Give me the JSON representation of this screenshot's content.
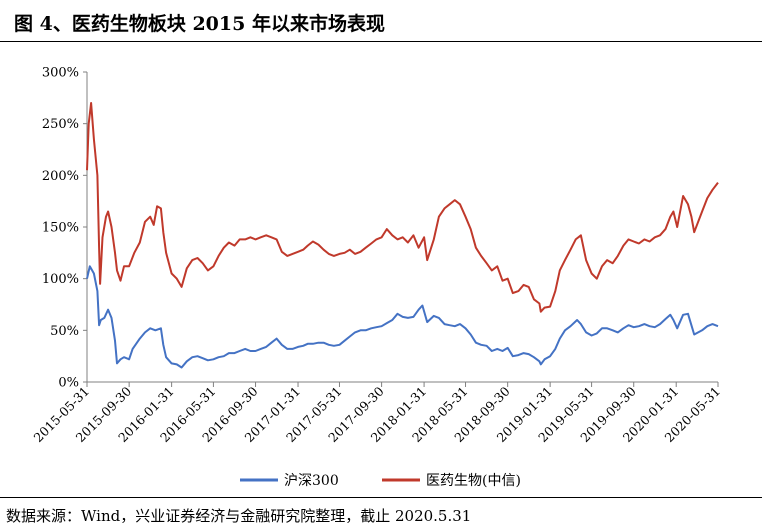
{
  "title": "图 4、医药生物板块 2015 年以来市场表现",
  "source": "数据来源：Wind，兴业证券经济与金融研究院整理，截止 2020.5.31",
  "chart_data": {
    "type": "line",
    "title": "",
    "xlabel": "",
    "ylabel": "",
    "ylim": [
      0,
      300
    ],
    "y_ticks": [
      "0%",
      "50%",
      "100%",
      "150%",
      "200%",
      "250%",
      "300%"
    ],
    "x_ticks": [
      "2015-05-31",
      "2015-09-30",
      "2016-01-31",
      "2016-05-31",
      "2016-09-30",
      "2017-01-31",
      "2017-05-31",
      "2017-09-30",
      "2018-01-31",
      "2018-05-31",
      "2018-09-30",
      "2019-01-31",
      "2019-05-31",
      "2019-09-30",
      "2020-01-31",
      "2020-05-31"
    ],
    "grid": false,
    "legend_position": "bottom",
    "colors": {
      "hs300": "#4472C4",
      "pharma": "#C0392B"
    },
    "series": [
      {
        "name": "沪深300",
        "points": [
          [
            "2015-05-31",
            100
          ],
          [
            "2015-06-08",
            112
          ],
          [
            "2015-06-20",
            105
          ],
          [
            "2015-06-30",
            88
          ],
          [
            "2015-07-05",
            55
          ],
          [
            "2015-07-10",
            60
          ],
          [
            "2015-07-20",
            62
          ],
          [
            "2015-07-31",
            70
          ],
          [
            "2015-08-10",
            62
          ],
          [
            "2015-08-20",
            40
          ],
          [
            "2015-08-26",
            18
          ],
          [
            "2015-09-05",
            22
          ],
          [
            "2015-09-15",
            24
          ],
          [
            "2015-09-30",
            22
          ],
          [
            "2015-10-10",
            32
          ],
          [
            "2015-10-31",
            42
          ],
          [
            "2015-11-15",
            48
          ],
          [
            "2015-11-30",
            52
          ],
          [
            "2015-12-15",
            50
          ],
          [
            "2015-12-31",
            52
          ],
          [
            "2016-01-07",
            36
          ],
          [
            "2016-01-15",
            24
          ],
          [
            "2016-01-31",
            18
          ],
          [
            "2016-02-15",
            17
          ],
          [
            "2016-02-29",
            14
          ],
          [
            "2016-03-15",
            20
          ],
          [
            "2016-03-31",
            24
          ],
          [
            "2016-04-15",
            25
          ],
          [
            "2016-04-30",
            23
          ],
          [
            "2016-05-15",
            21
          ],
          [
            "2016-05-31",
            22
          ],
          [
            "2016-06-15",
            24
          ],
          [
            "2016-06-30",
            25
          ],
          [
            "2016-07-15",
            28
          ],
          [
            "2016-07-31",
            28
          ],
          [
            "2016-08-15",
            30
          ],
          [
            "2016-08-31",
            32
          ],
          [
            "2016-09-15",
            30
          ],
          [
            "2016-09-30",
            30
          ],
          [
            "2016-10-15",
            32
          ],
          [
            "2016-10-31",
            34
          ],
          [
            "2016-11-15",
            38
          ],
          [
            "2016-11-30",
            42
          ],
          [
            "2016-12-15",
            36
          ],
          [
            "2016-12-31",
            32
          ],
          [
            "2017-01-15",
            32
          ],
          [
            "2017-01-31",
            34
          ],
          [
            "2017-02-15",
            35
          ],
          [
            "2017-02-28",
            37
          ],
          [
            "2017-03-15",
            37
          ],
          [
            "2017-03-31",
            38
          ],
          [
            "2017-04-15",
            38
          ],
          [
            "2017-04-30",
            36
          ],
          [
            "2017-05-15",
            35
          ],
          [
            "2017-05-31",
            36
          ],
          [
            "2017-06-15",
            40
          ],
          [
            "2017-06-30",
            44
          ],
          [
            "2017-07-15",
            48
          ],
          [
            "2017-07-31",
            50
          ],
          [
            "2017-08-15",
            50
          ],
          [
            "2017-08-31",
            52
          ],
          [
            "2017-09-15",
            53
          ],
          [
            "2017-09-30",
            54
          ],
          [
            "2017-10-15",
            57
          ],
          [
            "2017-10-31",
            60
          ],
          [
            "2017-11-15",
            66
          ],
          [
            "2017-11-30",
            63
          ],
          [
            "2017-12-15",
            62
          ],
          [
            "2017-12-31",
            63
          ],
          [
            "2018-01-15",
            70
          ],
          [
            "2018-01-26",
            74
          ],
          [
            "2018-02-09",
            58
          ],
          [
            "2018-02-28",
            64
          ],
          [
            "2018-03-15",
            62
          ],
          [
            "2018-03-31",
            56
          ],
          [
            "2018-04-15",
            55
          ],
          [
            "2018-04-30",
            54
          ],
          [
            "2018-05-15",
            56
          ],
          [
            "2018-05-31",
            52
          ],
          [
            "2018-06-15",
            46
          ],
          [
            "2018-06-30",
            38
          ],
          [
            "2018-07-15",
            36
          ],
          [
            "2018-07-31",
            35
          ],
          [
            "2018-08-15",
            30
          ],
          [
            "2018-08-31",
            32
          ],
          [
            "2018-09-15",
            30
          ],
          [
            "2018-09-30",
            33
          ],
          [
            "2018-10-15",
            25
          ],
          [
            "2018-10-31",
            26
          ],
          [
            "2018-11-15",
            28
          ],
          [
            "2018-11-30",
            27
          ],
          [
            "2018-12-15",
            24
          ],
          [
            "2018-12-31",
            20
          ],
          [
            "2019-01-04",
            17
          ],
          [
            "2019-01-15",
            22
          ],
          [
            "2019-01-31",
            25
          ],
          [
            "2019-02-15",
            32
          ],
          [
            "2019-02-28",
            42
          ],
          [
            "2019-03-15",
            50
          ],
          [
            "2019-03-31",
            54
          ],
          [
            "2019-04-19",
            60
          ],
          [
            "2019-04-30",
            56
          ],
          [
            "2019-05-15",
            48
          ],
          [
            "2019-05-31",
            45
          ],
          [
            "2019-06-15",
            47
          ],
          [
            "2019-06-30",
            52
          ],
          [
            "2019-07-15",
            52
          ],
          [
            "2019-07-31",
            50
          ],
          [
            "2019-08-15",
            48
          ],
          [
            "2019-08-31",
            52
          ],
          [
            "2019-09-15",
            55
          ],
          [
            "2019-09-30",
            53
          ],
          [
            "2019-10-15",
            54
          ],
          [
            "2019-10-31",
            56
          ],
          [
            "2019-11-15",
            54
          ],
          [
            "2019-11-30",
            53
          ],
          [
            "2019-12-15",
            56
          ],
          [
            "2019-12-31",
            61
          ],
          [
            "2020-01-14",
            65
          ],
          [
            "2020-01-23",
            60
          ],
          [
            "2020-02-03",
            52
          ],
          [
            "2020-02-20",
            65
          ],
          [
            "2020-03-05",
            66
          ],
          [
            "2020-03-15",
            55
          ],
          [
            "2020-03-23",
            46
          ],
          [
            "2020-04-15",
            50
          ],
          [
            "2020-04-30",
            54
          ],
          [
            "2020-05-15",
            56
          ],
          [
            "2020-05-31",
            54
          ]
        ]
      },
      {
        "name": "医药生物(中信)",
        "points": [
          [
            "2015-05-31",
            205
          ],
          [
            "2015-06-05",
            250
          ],
          [
            "2015-06-12",
            270
          ],
          [
            "2015-06-20",
            235
          ],
          [
            "2015-06-30",
            200
          ],
          [
            "2015-07-05",
            130
          ],
          [
            "2015-07-08",
            95
          ],
          [
            "2015-07-15",
            140
          ],
          [
            "2015-07-25",
            160
          ],
          [
            "2015-07-31",
            165
          ],
          [
            "2015-08-10",
            150
          ],
          [
            "2015-08-20",
            125
          ],
          [
            "2015-08-26",
            108
          ],
          [
            "2015-09-05",
            98
          ],
          [
            "2015-09-15",
            112
          ],
          [
            "2015-09-30",
            112
          ],
          [
            "2015-10-15",
            125
          ],
          [
            "2015-10-31",
            135
          ],
          [
            "2015-11-15",
            155
          ],
          [
            "2015-11-30",
            160
          ],
          [
            "2015-12-10",
            152
          ],
          [
            "2015-12-20",
            170
          ],
          [
            "2015-12-31",
            168
          ],
          [
            "2016-01-07",
            145
          ],
          [
            "2016-01-15",
            125
          ],
          [
            "2016-01-31",
            105
          ],
          [
            "2016-02-15",
            100
          ],
          [
            "2016-02-29",
            92
          ],
          [
            "2016-03-15",
            110
          ],
          [
            "2016-03-31",
            118
          ],
          [
            "2016-04-15",
            120
          ],
          [
            "2016-04-30",
            115
          ],
          [
            "2016-05-15",
            108
          ],
          [
            "2016-05-31",
            112
          ],
          [
            "2016-06-15",
            122
          ],
          [
            "2016-06-30",
            130
          ],
          [
            "2016-07-15",
            135
          ],
          [
            "2016-07-31",
            132
          ],
          [
            "2016-08-15",
            138
          ],
          [
            "2016-08-31",
            138
          ],
          [
            "2016-09-15",
            140
          ],
          [
            "2016-09-30",
            138
          ],
          [
            "2016-10-15",
            140
          ],
          [
            "2016-10-31",
            142
          ],
          [
            "2016-11-15",
            140
          ],
          [
            "2016-11-30",
            138
          ],
          [
            "2016-12-15",
            126
          ],
          [
            "2016-12-31",
            122
          ],
          [
            "2017-01-15",
            124
          ],
          [
            "2017-01-31",
            126
          ],
          [
            "2017-02-15",
            128
          ],
          [
            "2017-02-28",
            132
          ],
          [
            "2017-03-15",
            136
          ],
          [
            "2017-03-31",
            133
          ],
          [
            "2017-04-15",
            128
          ],
          [
            "2017-04-30",
            124
          ],
          [
            "2017-05-15",
            122
          ],
          [
            "2017-05-31",
            124
          ],
          [
            "2017-06-15",
            125
          ],
          [
            "2017-06-30",
            128
          ],
          [
            "2017-07-15",
            124
          ],
          [
            "2017-07-31",
            126
          ],
          [
            "2017-08-15",
            130
          ],
          [
            "2017-08-31",
            134
          ],
          [
            "2017-09-15",
            138
          ],
          [
            "2017-09-30",
            140
          ],
          [
            "2017-10-15",
            148
          ],
          [
            "2017-10-31",
            142
          ],
          [
            "2017-11-15",
            138
          ],
          [
            "2017-11-30",
            140
          ],
          [
            "2017-12-15",
            135
          ],
          [
            "2017-12-31",
            142
          ],
          [
            "2018-01-15",
            130
          ],
          [
            "2018-01-31",
            140
          ],
          [
            "2018-02-09",
            118
          ],
          [
            "2018-02-28",
            138
          ],
          [
            "2018-03-15",
            160
          ],
          [
            "2018-03-31",
            168
          ],
          [
            "2018-04-15",
            172
          ],
          [
            "2018-04-30",
            176
          ],
          [
            "2018-05-15",
            172
          ],
          [
            "2018-05-31",
            160
          ],
          [
            "2018-06-15",
            148
          ],
          [
            "2018-06-30",
            130
          ],
          [
            "2018-07-15",
            122
          ],
          [
            "2018-07-31",
            115
          ],
          [
            "2018-08-15",
            108
          ],
          [
            "2018-08-31",
            112
          ],
          [
            "2018-09-15",
            98
          ],
          [
            "2018-09-30",
            100
          ],
          [
            "2018-10-15",
            86
          ],
          [
            "2018-10-31",
            88
          ],
          [
            "2018-11-15",
            94
          ],
          [
            "2018-11-30",
            92
          ],
          [
            "2018-12-15",
            80
          ],
          [
            "2018-12-31",
            76
          ],
          [
            "2019-01-04",
            68
          ],
          [
            "2019-01-15",
            72
          ],
          [
            "2019-01-31",
            73
          ],
          [
            "2019-02-15",
            88
          ],
          [
            "2019-02-28",
            108
          ],
          [
            "2019-03-15",
            118
          ],
          [
            "2019-03-31",
            128
          ],
          [
            "2019-04-15",
            138
          ],
          [
            "2019-04-30",
            142
          ],
          [
            "2019-05-15",
            118
          ],
          [
            "2019-05-31",
            105
          ],
          [
            "2019-06-15",
            100
          ],
          [
            "2019-06-30",
            112
          ],
          [
            "2019-07-15",
            118
          ],
          [
            "2019-07-31",
            115
          ],
          [
            "2019-08-15",
            122
          ],
          [
            "2019-08-31",
            132
          ],
          [
            "2019-09-15",
            138
          ],
          [
            "2019-09-30",
            136
          ],
          [
            "2019-10-15",
            134
          ],
          [
            "2019-10-31",
            138
          ],
          [
            "2019-11-15",
            136
          ],
          [
            "2019-11-30",
            140
          ],
          [
            "2019-12-15",
            142
          ],
          [
            "2019-12-31",
            148
          ],
          [
            "2020-01-14",
            160
          ],
          [
            "2020-01-23",
            165
          ],
          [
            "2020-02-03",
            150
          ],
          [
            "2020-02-20",
            180
          ],
          [
            "2020-03-05",
            172
          ],
          [
            "2020-03-15",
            160
          ],
          [
            "2020-03-23",
            145
          ],
          [
            "2020-04-15",
            165
          ],
          [
            "2020-04-30",
            178
          ],
          [
            "2020-05-15",
            186
          ],
          [
            "2020-05-31",
            193
          ]
        ]
      }
    ]
  }
}
